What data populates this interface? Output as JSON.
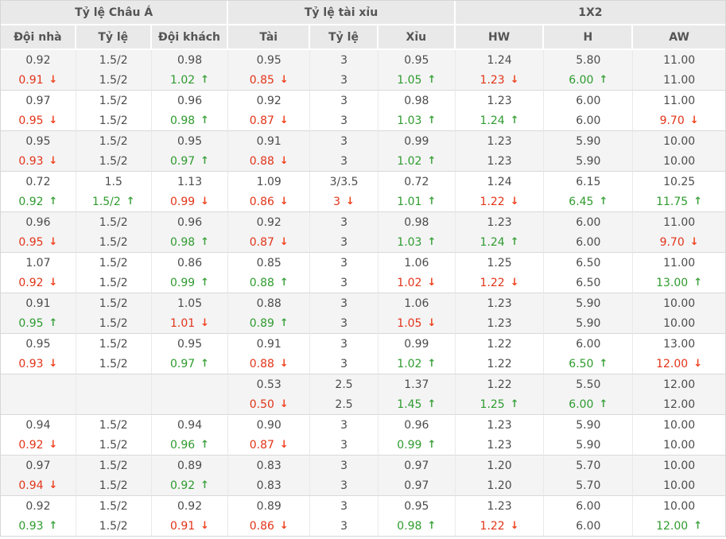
{
  "table": {
    "groups": [
      {
        "label": "Tỷ lệ Châu Á"
      },
      {
        "label": "Tỷ lệ tài xỉu"
      },
      {
        "label": "1X2"
      }
    ],
    "columns": [
      "Đội nhà",
      "Tỷ lệ",
      "Đội khách",
      "Tài",
      "Tỷ lệ",
      "Xỉu",
      "HW",
      "H",
      "AW"
    ],
    "rows": [
      {
        "shaded": true,
        "cells": [
          {
            "t": "0.92",
            "b": "0.91",
            "d": "down"
          },
          {
            "t": "1.5/2",
            "b": "1.5/2"
          },
          {
            "t": "0.98",
            "b": "1.02",
            "d": "up"
          },
          {
            "t": "0.95",
            "b": "0.85",
            "d": "down"
          },
          {
            "t": "3",
            "b": "3"
          },
          {
            "t": "0.95",
            "b": "1.05",
            "d": "up"
          },
          {
            "t": "1.24",
            "b": "1.23",
            "d": "down"
          },
          {
            "t": "5.80",
            "b": "6.00",
            "d": "up"
          },
          {
            "t": "11.00",
            "b": "11.00"
          }
        ]
      },
      {
        "shaded": false,
        "cells": [
          {
            "t": "0.97",
            "b": "0.95",
            "d": "down"
          },
          {
            "t": "1.5/2",
            "b": "1.5/2"
          },
          {
            "t": "0.96",
            "b": "0.98",
            "d": "up"
          },
          {
            "t": "0.92",
            "b": "0.87",
            "d": "down"
          },
          {
            "t": "3",
            "b": "3"
          },
          {
            "t": "0.98",
            "b": "1.03",
            "d": "up"
          },
          {
            "t": "1.23",
            "b": "1.24",
            "d": "up"
          },
          {
            "t": "6.00",
            "b": "6.00"
          },
          {
            "t": "11.00",
            "b": "9.70",
            "d": "down"
          }
        ]
      },
      {
        "shaded": true,
        "cells": [
          {
            "t": "0.95",
            "b": "0.93",
            "d": "down"
          },
          {
            "t": "1.5/2",
            "b": "1.5/2"
          },
          {
            "t": "0.95",
            "b": "0.97",
            "d": "up"
          },
          {
            "t": "0.91",
            "b": "0.88",
            "d": "down"
          },
          {
            "t": "3",
            "b": "3"
          },
          {
            "t": "0.99",
            "b": "1.02",
            "d": "up"
          },
          {
            "t": "1.23",
            "b": "1.23"
          },
          {
            "t": "5.90",
            "b": "5.90"
          },
          {
            "t": "10.00",
            "b": "10.00"
          }
        ]
      },
      {
        "shaded": false,
        "cells": [
          {
            "t": "0.72",
            "b": "0.92",
            "d": "up"
          },
          {
            "t": "1.5",
            "b": "1.5/2",
            "d": "up"
          },
          {
            "t": "1.13",
            "b": "0.99",
            "d": "down"
          },
          {
            "t": "1.09",
            "b": "0.86",
            "d": "down"
          },
          {
            "t": "3/3.5",
            "b": "3",
            "d": "down"
          },
          {
            "t": "0.72",
            "b": "1.01",
            "d": "up"
          },
          {
            "t": "1.24",
            "b": "1.22",
            "d": "down"
          },
          {
            "t": "6.15",
            "b": "6.45",
            "d": "up"
          },
          {
            "t": "10.25",
            "b": "11.75",
            "d": "up"
          }
        ]
      },
      {
        "shaded": true,
        "cells": [
          {
            "t": "0.96",
            "b": "0.95",
            "d": "down"
          },
          {
            "t": "1.5/2",
            "b": "1.5/2"
          },
          {
            "t": "0.96",
            "b": "0.98",
            "d": "up"
          },
          {
            "t": "0.92",
            "b": "0.87",
            "d": "down"
          },
          {
            "t": "3",
            "b": "3"
          },
          {
            "t": "0.98",
            "b": "1.03",
            "d": "up"
          },
          {
            "t": "1.23",
            "b": "1.24",
            "d": "up"
          },
          {
            "t": "6.00",
            "b": "6.00"
          },
          {
            "t": "11.00",
            "b": "9.70",
            "d": "down"
          }
        ]
      },
      {
        "shaded": false,
        "cells": [
          {
            "t": "1.07",
            "b": "0.92",
            "d": "down"
          },
          {
            "t": "1.5/2",
            "b": "1.5/2"
          },
          {
            "t": "0.86",
            "b": "0.99",
            "d": "up"
          },
          {
            "t": "0.85",
            "b": "0.88",
            "d": "up"
          },
          {
            "t": "3",
            "b": "3"
          },
          {
            "t": "1.06",
            "b": "1.02",
            "d": "down"
          },
          {
            "t": "1.25",
            "b": "1.22",
            "d": "down"
          },
          {
            "t": "6.50",
            "b": "6.50"
          },
          {
            "t": "11.00",
            "b": "13.00",
            "d": "up"
          }
        ]
      },
      {
        "shaded": true,
        "cells": [
          {
            "t": "0.91",
            "b": "0.95",
            "d": "up"
          },
          {
            "t": "1.5/2",
            "b": "1.5/2"
          },
          {
            "t": "1.05",
            "b": "1.01",
            "d": "down"
          },
          {
            "t": "0.88",
            "b": "0.89",
            "d": "up"
          },
          {
            "t": "3",
            "b": "3"
          },
          {
            "t": "1.06",
            "b": "1.05",
            "d": "down"
          },
          {
            "t": "1.23",
            "b": "1.23"
          },
          {
            "t": "5.90",
            "b": "5.90"
          },
          {
            "t": "10.00",
            "b": "10.00"
          }
        ]
      },
      {
        "shaded": false,
        "cells": [
          {
            "t": "0.95",
            "b": "0.93",
            "d": "down"
          },
          {
            "t": "1.5/2",
            "b": "1.5/2"
          },
          {
            "t": "0.95",
            "b": "0.97",
            "d": "up"
          },
          {
            "t": "0.91",
            "b": "0.88",
            "d": "down"
          },
          {
            "t": "3",
            "b": "3"
          },
          {
            "t": "0.99",
            "b": "1.02",
            "d": "up"
          },
          {
            "t": "1.22",
            "b": "1.22"
          },
          {
            "t": "6.00",
            "b": "6.50",
            "d": "up"
          },
          {
            "t": "13.00",
            "b": "12.00",
            "d": "down"
          }
        ]
      },
      {
        "shaded": true,
        "cells": [
          {
            "t": "",
            "b": ""
          },
          {
            "t": "",
            "b": ""
          },
          {
            "t": "",
            "b": ""
          },
          {
            "t": "0.53",
            "b": "0.50",
            "d": "down"
          },
          {
            "t": "2.5",
            "b": "2.5"
          },
          {
            "t": "1.37",
            "b": "1.45",
            "d": "up"
          },
          {
            "t": "1.22",
            "b": "1.25",
            "d": "up"
          },
          {
            "t": "5.50",
            "b": "6.00",
            "d": "up"
          },
          {
            "t": "12.00",
            "b": "12.00"
          }
        ]
      },
      {
        "shaded": false,
        "cells": [
          {
            "t": "0.94",
            "b": "0.92",
            "d": "down"
          },
          {
            "t": "1.5/2",
            "b": "1.5/2"
          },
          {
            "t": "0.94",
            "b": "0.96",
            "d": "up"
          },
          {
            "t": "0.90",
            "b": "0.87",
            "d": "down"
          },
          {
            "t": "3",
            "b": "3"
          },
          {
            "t": "0.96",
            "b": "0.99",
            "d": "up"
          },
          {
            "t": "1.23",
            "b": "1.23"
          },
          {
            "t": "5.90",
            "b": "5.90"
          },
          {
            "t": "10.00",
            "b": "10.00"
          }
        ]
      },
      {
        "shaded": true,
        "cells": [
          {
            "t": "0.97",
            "b": "0.94",
            "d": "down"
          },
          {
            "t": "1.5/2",
            "b": "1.5/2"
          },
          {
            "t": "0.89",
            "b": "0.92",
            "d": "up"
          },
          {
            "t": "0.83",
            "b": "0.83"
          },
          {
            "t": "3",
            "b": "3"
          },
          {
            "t": "0.97",
            "b": "0.97"
          },
          {
            "t": "1.20",
            "b": "1.20"
          },
          {
            "t": "5.70",
            "b": "5.70"
          },
          {
            "t": "10.00",
            "b": "10.00"
          }
        ]
      },
      {
        "shaded": false,
        "cells": [
          {
            "t": "0.92",
            "b": "0.93",
            "d": "up"
          },
          {
            "t": "1.5/2",
            "b": "1.5/2"
          },
          {
            "t": "0.92",
            "b": "0.91",
            "d": "down"
          },
          {
            "t": "0.89",
            "b": "0.86",
            "d": "down"
          },
          {
            "t": "3",
            "b": "3"
          },
          {
            "t": "0.95",
            "b": "0.98",
            "d": "up"
          },
          {
            "t": "1.23",
            "b": "1.22",
            "d": "down"
          },
          {
            "t": "6.00",
            "b": "6.00"
          },
          {
            "t": "10.00",
            "b": "12.00",
            "d": "up"
          }
        ]
      }
    ]
  },
  "colors": {
    "up_green": "#2e9b2e",
    "down_red": "#e23418",
    "header_bg": "#e9e9e9",
    "shaded_row_bg": "#f4f4f5"
  },
  "icons": {
    "up_arrow": "↑",
    "down_arrow": "↓"
  }
}
